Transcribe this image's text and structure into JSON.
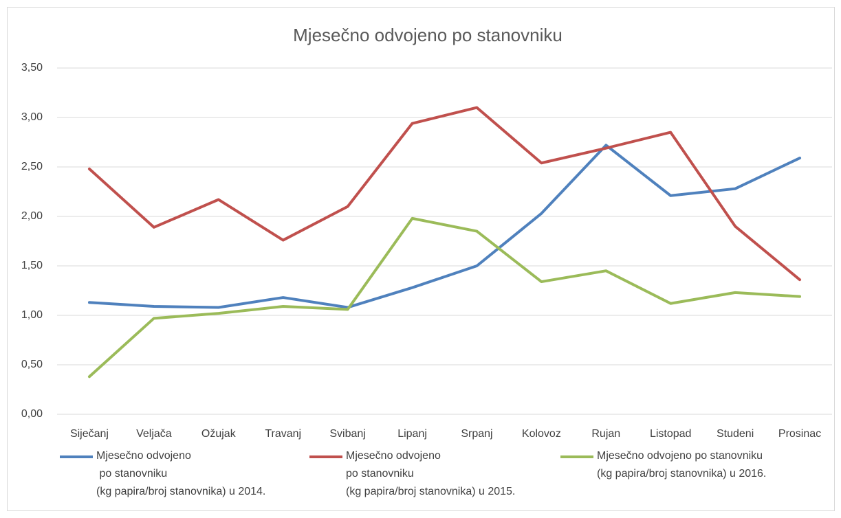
{
  "chart_data": {
    "type": "line",
    "title": "Mjesečno odvojeno po stanovniku",
    "categories": [
      "Siječanj",
      "Veljača",
      "Ožujak",
      "Travanj",
      "Svibanj",
      "Lipanj",
      "Srpanj",
      "Kolovoz",
      "Rujan",
      "Listopad",
      "Studeni",
      "Prosinac"
    ],
    "series": [
      {
        "name": "Mjesečno odvojeno\n po stanovniku\n(kg papira/broj stanovnika) u 2014.",
        "color": "#4f81bd",
        "values": [
          1.13,
          1.09,
          1.08,
          1.18,
          1.08,
          1.28,
          1.5,
          2.03,
          2.72,
          2.21,
          2.28,
          2.59
        ]
      },
      {
        "name": "Mjesečno odvojeno\npo stanovniku\n(kg papira/broj stanovnika) u 2015.",
        "color": "#c0504d",
        "values": [
          2.48,
          1.89,
          2.17,
          1.76,
          2.1,
          2.94,
          3.1,
          2.54,
          2.69,
          2.85,
          1.9,
          1.36
        ]
      },
      {
        "name": "Mjesečno odvojeno po stanovniku\n(kg papira/broj stanovnika) u 2016.",
        "color": "#9bbb59",
        "values": [
          0.38,
          0.97,
          1.02,
          1.09,
          1.06,
          1.98,
          1.85,
          1.34,
          1.45,
          1.12,
          1.23,
          1.19
        ]
      }
    ],
    "ylim": [
      0,
      3.5
    ],
    "yticks": [
      {
        "value": 0,
        "label": "0,00"
      },
      {
        "value": 0.5,
        "label": "0,50"
      },
      {
        "value": 1,
        "label": "1,00"
      },
      {
        "value": 1.5,
        "label": "1,50"
      },
      {
        "value": 2,
        "label": "2,00"
      },
      {
        "value": 2.5,
        "label": "2,50"
      },
      {
        "value": 3,
        "label": "3,00"
      },
      {
        "value": 3.5,
        "label": "3,50"
      }
    ],
    "grid": true,
    "legend": "bottom"
  }
}
